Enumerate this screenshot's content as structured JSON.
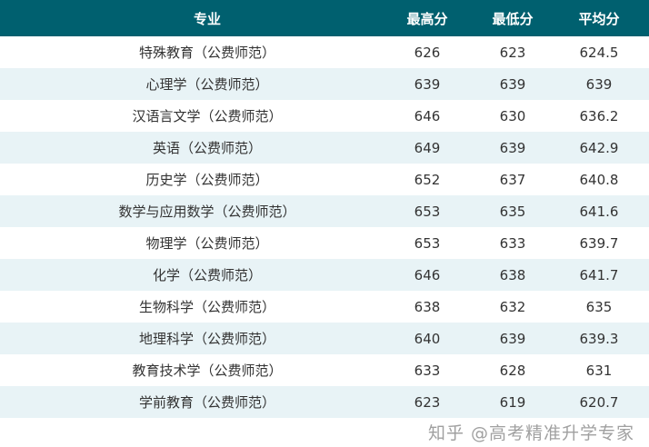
{
  "colors": {
    "header_bg": "#00606f",
    "alt_row_bg": "#e8f3f6"
  },
  "headers": [
    "专业",
    "最高分",
    "最低分",
    "平均分"
  ],
  "rows": [
    [
      "特殊教育（公费师范）",
      "626",
      "623",
      "624.5"
    ],
    [
      "心理学（公费师范）",
      "639",
      "639",
      "639"
    ],
    [
      "汉语言文学（公费师范）",
      "646",
      "630",
      "636.2"
    ],
    [
      "英语（公费师范）",
      "649",
      "639",
      "642.9"
    ],
    [
      "历史学（公费师范）",
      "652",
      "637",
      "640.8"
    ],
    [
      "数学与应用数学（公费师范）",
      "653",
      "635",
      "641.6"
    ],
    [
      "物理学（公费师范）",
      "653",
      "633",
      "639.7"
    ],
    [
      "化学（公费师范）",
      "646",
      "638",
      "641.7"
    ],
    [
      "生物科学（公费师范）",
      "638",
      "632",
      "635"
    ],
    [
      "地理科学（公费师范）",
      "640",
      "639",
      "639.3"
    ],
    [
      "教育技术学（公费师范）",
      "633",
      "628",
      "631"
    ],
    [
      "学前教育（公费师范）",
      "623",
      "619",
      "620.7"
    ]
  ],
  "watermark": "知乎 @高考精准升学专家"
}
